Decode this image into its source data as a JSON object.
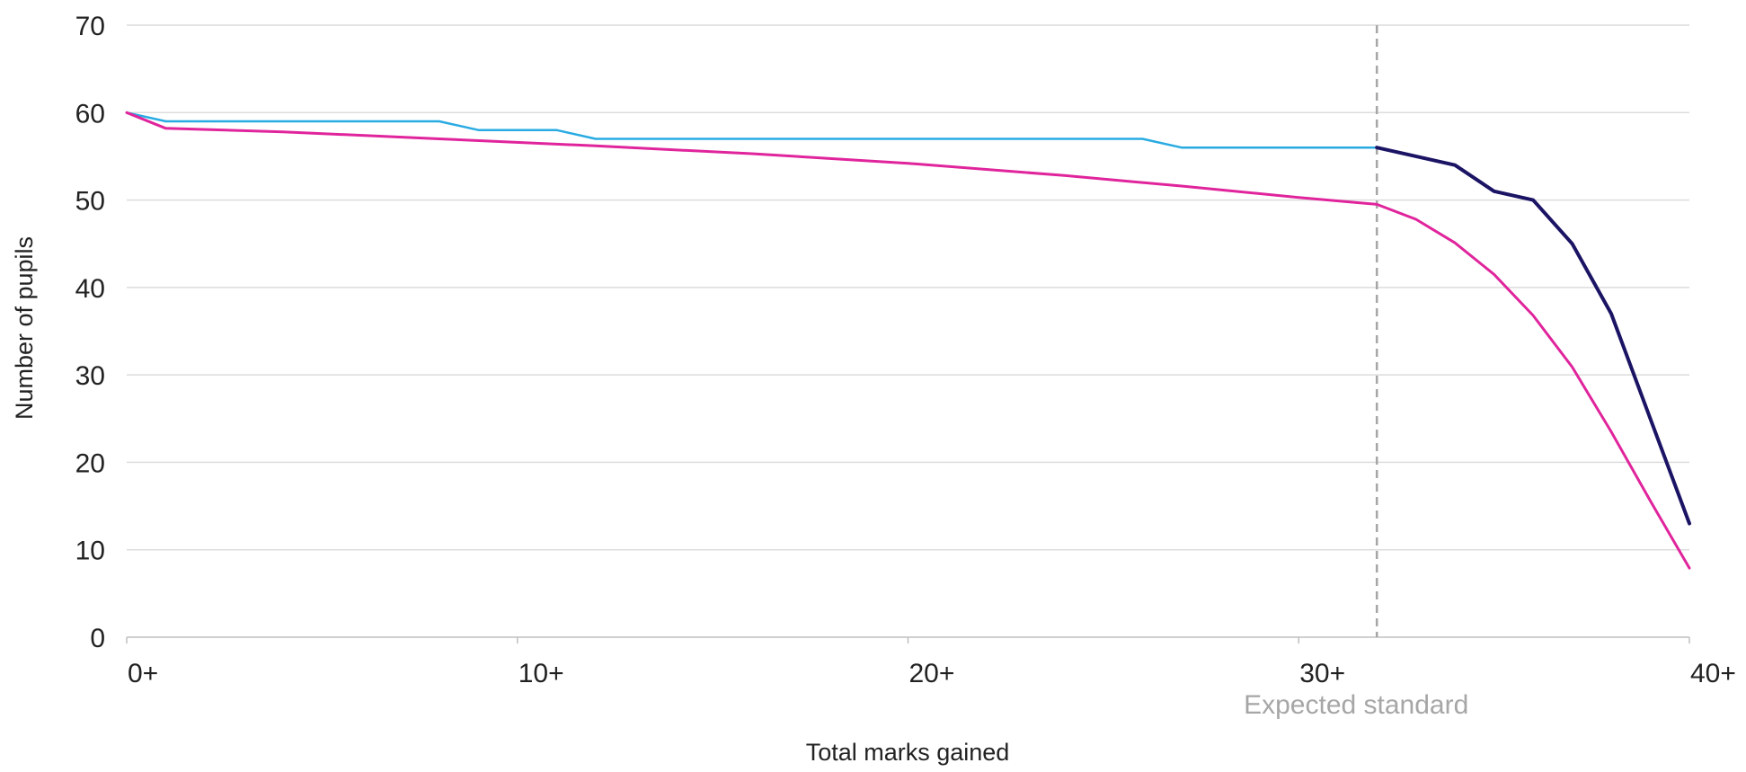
{
  "chart_data": {
    "type": "line",
    "title": "",
    "xlabel": "Total marks gained",
    "ylabel": "Number of pupils",
    "xlim": [
      0,
      40
    ],
    "ylim": [
      0,
      70
    ],
    "grid": true,
    "x_ticks": [
      0,
      10,
      20,
      30,
      40
    ],
    "x_tick_labels": [
      "0+",
      "10+",
      "20+",
      "30+",
      "40+"
    ],
    "y_ticks": [
      0,
      10,
      20,
      30,
      40,
      50,
      60,
      70
    ],
    "y_tick_labels": [
      "0",
      "10",
      "20",
      "30",
      "40",
      "50",
      "60",
      "70"
    ],
    "series": [
      {
        "color": "#29abe2",
        "points": [
          [
            0,
            60
          ],
          [
            1,
            59
          ],
          [
            2,
            59
          ],
          [
            3,
            59
          ],
          [
            4,
            59
          ],
          [
            5,
            59
          ],
          [
            6,
            59
          ],
          [
            7,
            59
          ],
          [
            8,
            59
          ],
          [
            9,
            58
          ],
          [
            10,
            58
          ],
          [
            11,
            58
          ],
          [
            12,
            57
          ],
          [
            13,
            57
          ],
          [
            14,
            57
          ],
          [
            15,
            57
          ],
          [
            16,
            57
          ],
          [
            17,
            57
          ],
          [
            18,
            57
          ],
          [
            19,
            57
          ],
          [
            20,
            57
          ],
          [
            21,
            57
          ],
          [
            22,
            57
          ],
          [
            23,
            57
          ],
          [
            24,
            57
          ],
          [
            25,
            57
          ],
          [
            26,
            57
          ],
          [
            27,
            56
          ],
          [
            28,
            56
          ],
          [
            29,
            56
          ],
          [
            30,
            56
          ],
          [
            31,
            56
          ],
          [
            32,
            56
          ]
        ]
      },
      {
        "color": "#1b1464",
        "points": [
          [
            32,
            56
          ],
          [
            33,
            55
          ],
          [
            34,
            54
          ],
          [
            35,
            51
          ],
          [
            36,
            50
          ],
          [
            37,
            45
          ],
          [
            38,
            37
          ],
          [
            39,
            25
          ],
          [
            40,
            13
          ]
        ]
      },
      {
        "color": "#e0249c",
        "points": [
          [
            0,
            60
          ],
          [
            1,
            58.2
          ],
          [
            4,
            57.8
          ],
          [
            8,
            57
          ],
          [
            12,
            56.2
          ],
          [
            16,
            55.3
          ],
          [
            20,
            54.2
          ],
          [
            24,
            52.8
          ],
          [
            27,
            51.6
          ],
          [
            30,
            50.3
          ],
          [
            32,
            49.5
          ],
          [
            33,
            47.8
          ],
          [
            34,
            45.1
          ],
          [
            35,
            41.5
          ],
          [
            36,
            36.8
          ],
          [
            37,
            30.9
          ],
          [
            38,
            23.5
          ],
          [
            39,
            15.6
          ],
          [
            40,
            7.9
          ]
        ]
      }
    ],
    "reference_line": {
      "x": 32,
      "style": "dashed",
      "color": "#a6a6a6",
      "label": "Expected standard"
    }
  }
}
